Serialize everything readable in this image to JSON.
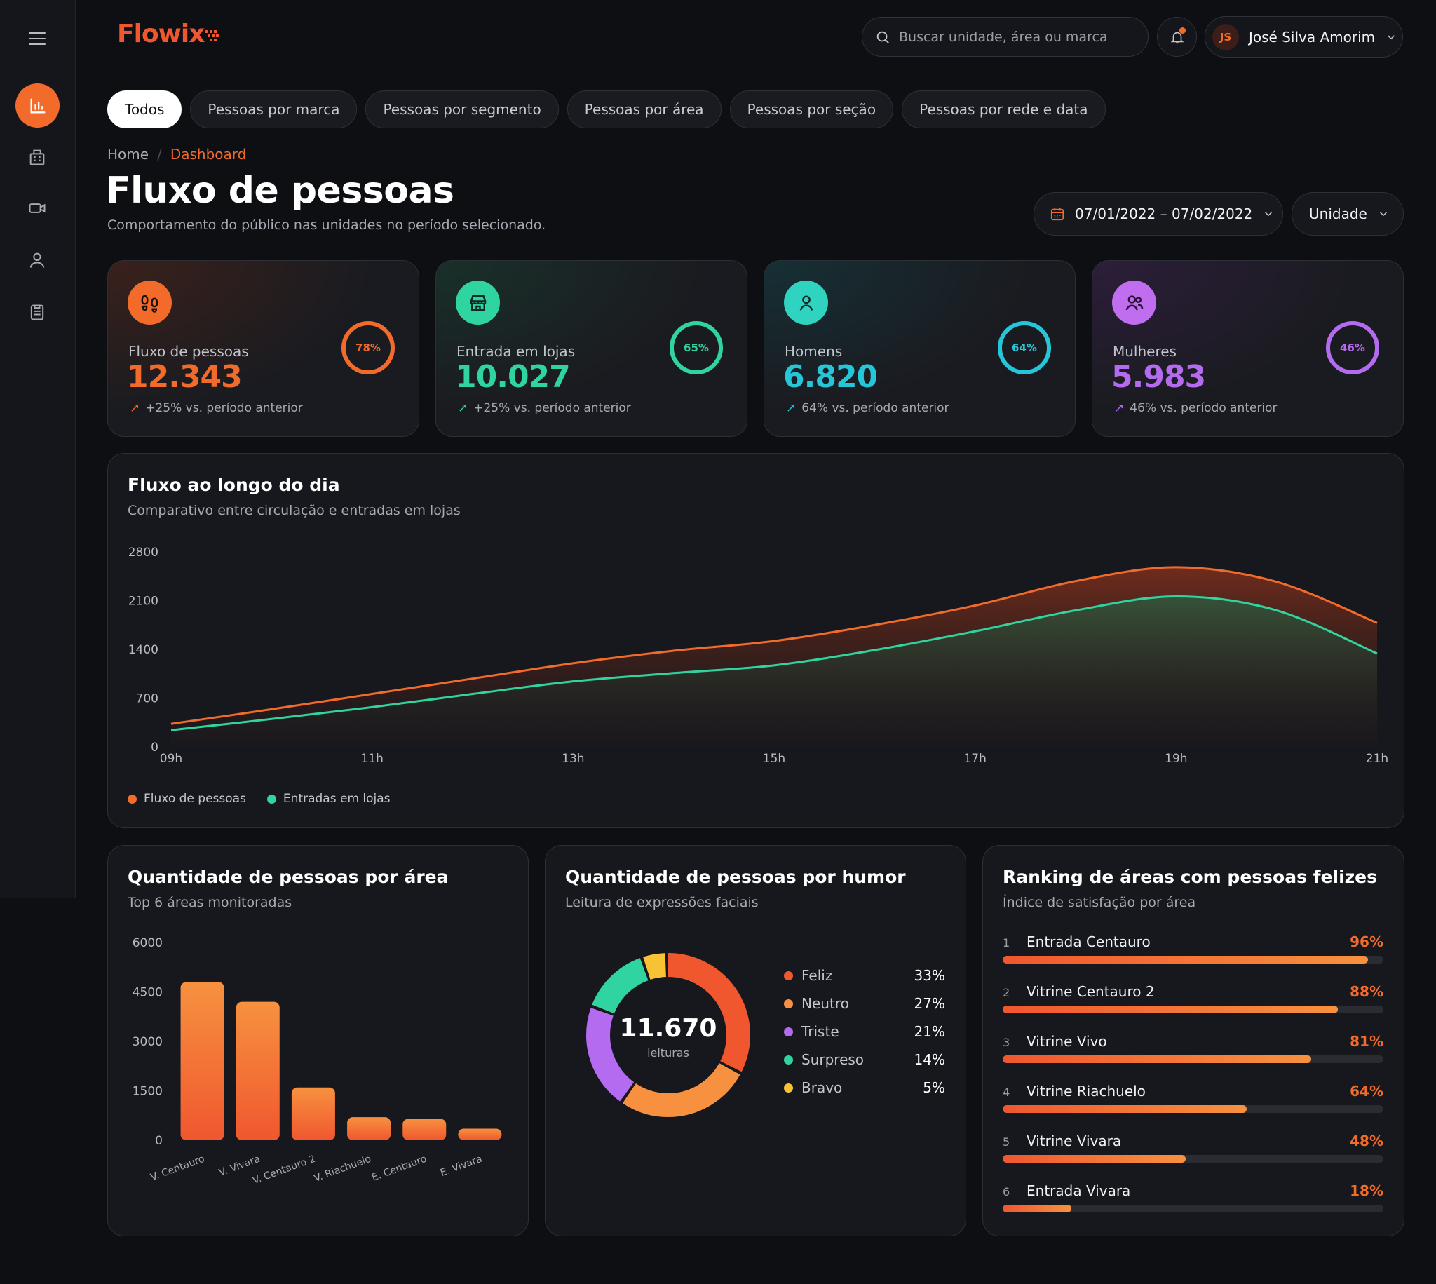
{
  "app": {
    "logo_text": "Flowix"
  },
  "sidebar": {
    "items": [
      "menu-icon",
      "chart-icon",
      "building-icon",
      "camera-icon",
      "user-icon",
      "clipboard-icon"
    ]
  },
  "header": {
    "search_placeholder": "Buscar unidade, área ou marca",
    "user_initials": "JS",
    "user_name": "José Silva Amorim"
  },
  "tabs": [
    "Todos",
    "Pessoas por marca",
    "Pessoas por segmento",
    "Pessoas por área",
    "Pessoas por seção",
    "Pessoas por rede e data"
  ],
  "breadcrumb": {
    "home": "Home",
    "separator": "/",
    "current": "Dashboard"
  },
  "page": {
    "title": "Fluxo de pessoas",
    "subtitle": "Comportamento do público nas unidades no período selecionado."
  },
  "filters": {
    "date_range": "07/01/2022 – 07/02/2022",
    "unit": "Unidade"
  },
  "kpis": [
    {
      "label": "Fluxo de pessoas",
      "value": "12.343",
      "trend": "+25% vs. período anterior",
      "ring_label": "78%",
      "ring_value": 0.78,
      "color": "#f26b2b",
      "icon": "footprints-icon"
    },
    {
      "label": "Entrada em lojas",
      "value": "10.027",
      "trend": "+25% vs. período anterior",
      "ring_label": "65%",
      "ring_value": 0.65,
      "color": "#2fd4a0",
      "icon": "store-icon"
    },
    {
      "label": "Homens",
      "value": "6.820",
      "trend": "64% vs. período anterior",
      "ring_label": "64%",
      "ring_value": 0.64,
      "color": "#24c6d8",
      "icon": "user-icon"
    },
    {
      "label": "Mulheres",
      "value": "5.983",
      "trend": "46% vs. período anterior",
      "ring_label": "46%",
      "ring_value": 0.46,
      "color": "#b46bf0",
      "icon": "users-icon"
    }
  ],
  "flow_panel": {
    "title": "Fluxo ao longo do dia",
    "subtitle": "Comparativo entre circulação e entradas em lojas"
  },
  "area_panel": {
    "title": "Quantidade de pessoas por área",
    "subtitle": "Top 6 áreas monitoradas"
  },
  "mood_panel": {
    "title": "Quantidade de pessoas por humor",
    "subtitle": "Leitura de expressões faciais",
    "total": "11.670",
    "total_label": "leituras",
    "items": [
      {
        "name": "Feliz",
        "pct": "33%",
        "color": "#f0572f"
      },
      {
        "name": "Neutro",
        "pct": "27%",
        "color": "#f7913f"
      },
      {
        "name": "Triste",
        "pct": "21%",
        "color": "#b46bf0"
      },
      {
        "name": "Surpreso",
        "pct": "14%",
        "color": "#2fd4a0"
      },
      {
        "name": "Bravo",
        "pct": "5%",
        "color": "#f7c234"
      }
    ]
  },
  "ranking_panel": {
    "title": "Ranking de áreas com pessoas felizes",
    "subtitle": "Índice de satisfação por área",
    "items": [
      {
        "rank": "1",
        "name": "Entrada Centauro",
        "pct_label": "96%",
        "value": 0.96
      },
      {
        "rank": "2",
        "name": "Vitrine Centauro 2",
        "pct_label": "88%",
        "value": 0.88
      },
      {
        "rank": "3",
        "name": "Vitrine Vivo",
        "pct_label": "81%",
        "value": 0.81
      },
      {
        "rank": "4",
        "name": "Vitrine Riachuelo",
        "pct_label": "64%",
        "value": 0.64
      },
      {
        "rank": "5",
        "name": "Vitrine Vivara",
        "pct_label": "48%",
        "value": 0.48
      },
      {
        "rank": "6",
        "name": "Entrada Vivara",
        "pct_label": "18%",
        "value": 0.18
      }
    ]
  },
  "chart_data": [
    {
      "type": "area",
      "title": "Fluxo ao longo do dia",
      "subtitle": "Comparativo entre circulação e entradas em lojas",
      "x": [
        "09h",
        "10h",
        "11h",
        "12h",
        "13h",
        "14h",
        "15h",
        "16h",
        "17h",
        "18h",
        "19h",
        "20h",
        "21h"
      ],
      "x_tick_labels": [
        "09h",
        "11h",
        "13h",
        "15h",
        "17h",
        "19h",
        "21h"
      ],
      "y_ticks": [
        0,
        700,
        1400,
        2100,
        2800
      ],
      "ylim": [
        0,
        2800
      ],
      "grid": false,
      "legend": "bottom-left",
      "series": [
        {
          "name": "Fluxo de pessoas",
          "color": "#f26b2b",
          "values": [
            330,
            540,
            760,
            980,
            1200,
            1380,
            1520,
            1750,
            2030,
            2380,
            2580,
            2370,
            1780
          ]
        },
        {
          "name": "Entradas em lojas",
          "color": "#2fd4a0",
          "values": [
            240,
            400,
            570,
            760,
            940,
            1060,
            1170,
            1390,
            1660,
            1960,
            2160,
            1960,
            1340
          ]
        }
      ]
    },
    {
      "type": "bar",
      "title": "Quantidade de pessoas por área",
      "subtitle": "Top 6 áreas monitoradas",
      "categories": [
        "V. Centauro",
        "V. Vivara",
        "V. Centauro 2",
        "V. Riachuelo",
        "E. Centauro",
        "E. Vivara"
      ],
      "values": [
        4800,
        4200,
        1600,
        700,
        650,
        350
      ],
      "y_ticks": [
        0,
        1500,
        3000,
        4500,
        6000
      ],
      "ylim": [
        0,
        6000
      ],
      "grid": false,
      "color": "#f7913f"
    },
    {
      "type": "pie",
      "title": "Quantidade de pessoas por humor",
      "categories": [
        "Feliz",
        "Neutro",
        "Triste",
        "Surpreso",
        "Bravo"
      ],
      "values": [
        33,
        27,
        21,
        14,
        5
      ]
    }
  ]
}
